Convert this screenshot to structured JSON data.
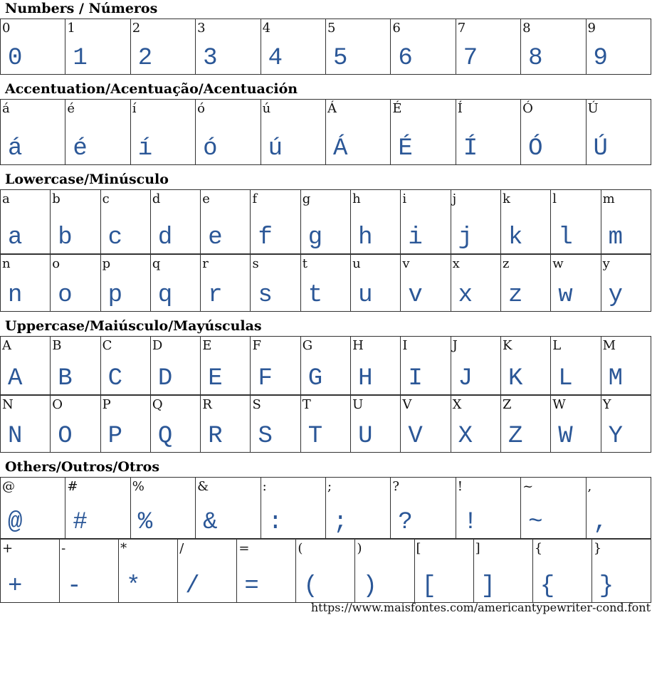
{
  "accent_color": "#2b5797",
  "sections": [
    {
      "title": "Numbers / Números",
      "rows": [
        [
          "0",
          "1",
          "2",
          "3",
          "4",
          "5",
          "6",
          "7",
          "8",
          "9"
        ]
      ],
      "row_heights": [
        78
      ]
    },
    {
      "title": "Accentuation/Acentuação/Acentuación",
      "rows": [
        [
          "á",
          "é",
          "í",
          "ó",
          "ú",
          "Á",
          "É",
          "Í",
          "Ó",
          "Ú"
        ]
      ],
      "row_heights": [
        92
      ]
    },
    {
      "title": "Lowercase/Minúsculo",
      "rows": [
        [
          "a",
          "b",
          "c",
          "d",
          "e",
          "f",
          "g",
          "h",
          "i",
          "j",
          "k",
          "l",
          "m"
        ],
        [
          "n",
          "o",
          "p",
          "q",
          "r",
          "s",
          "t",
          "u",
          "v",
          "x",
          "z",
          "w",
          "y"
        ]
      ],
      "row_heights": [
        90,
        80
      ]
    },
    {
      "title": "Uppercase/Maiúsculo/Mayúsculas",
      "rows": [
        [
          "A",
          "B",
          "C",
          "D",
          "E",
          "F",
          "G",
          "H",
          "I",
          "J",
          "K",
          "L",
          "M"
        ],
        [
          "N",
          "O",
          "P",
          "Q",
          "R",
          "S",
          "T",
          "U",
          "V",
          "X",
          "Z",
          "W",
          "Y"
        ]
      ],
      "row_heights": [
        82,
        80
      ]
    },
    {
      "title": "Others/Outros/Otros",
      "rows": [
        [
          "@",
          "#",
          "%",
          "&",
          ":",
          ";",
          "?",
          "!",
          "~",
          ","
        ],
        [
          "+",
          "-",
          "*",
          "/",
          "=",
          "(",
          ")",
          "[",
          "]",
          "{",
          "}"
        ]
      ],
      "row_heights": [
        86,
        89
      ]
    }
  ],
  "footer": {
    "url": "https://www.maisfontes.com/americantypewriter-cond.font"
  }
}
